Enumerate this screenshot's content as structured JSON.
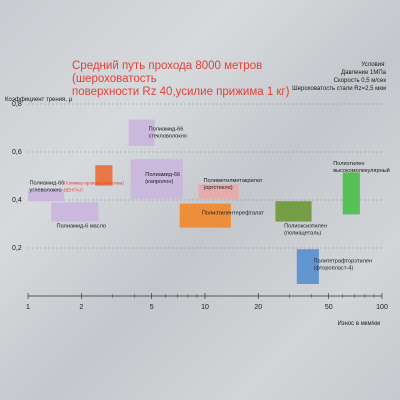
{
  "chart_data": {
    "type": "box",
    "title": "Средний путь прохода 8000 метров (шероховатость поверхности Rz 40,усилие прижима 1 кг)",
    "title_lines": [
      "Средний путь прохода 8000 метров (шероховатость",
      "поверхности Rz 40,усилие прижима 1 кг)"
    ],
    "conditions": [
      "Условия:",
      "Давление 1МПа",
      "Скорость 0,5 м/сек",
      "Шероховатость стали Rz=2,5 мкм"
    ],
    "ylabel": "Коэффициент трения, μ",
    "xlabel": "Износ в мкм/км",
    "x_scale": "log",
    "xlim": [
      1,
      100
    ],
    "ylim": [
      0,
      0.8
    ],
    "x_ticks": [
      1,
      2,
      5,
      10,
      20,
      50,
      100
    ],
    "x_tick_labels": [
      "1",
      "2",
      "5",
      "10",
      "20",
      "50",
      "100"
    ],
    "y_ticks": [
      0.2,
      0.4,
      0.6,
      0.8
    ],
    "y_tick_labels": [
      "0,2",
      "0,4",
      "0,6",
      "0,8"
    ],
    "grid": "horizontal dashed",
    "materials": [
      {
        "name": "Полиамид-66 стекловолокно",
        "x": [
          3.7,
          5.2
        ],
        "y": [
          0.625,
          0.735
        ],
        "color": "#c9b6dc",
        "label_lines": [
          "Полиамид-66",
          "стекловолокно"
        ],
        "label_pos": [
          4.8,
          0.69
        ]
      },
      {
        "name": "Полиамид-66 углеволокно",
        "x": [
          1.0,
          1.6
        ],
        "y": [
          0.395,
          0.445
        ],
        "color": "#c9b6dc",
        "label_lines": [
          "Полиамид-66",
          "углеволокно"
        ],
        "label_pos": [
          1.02,
          0.465
        ]
      },
      {
        "name": "Полиамид-6 масло",
        "x": [
          1.35,
          2.5
        ],
        "y": [
          0.31,
          0.39
        ],
        "color": "#c9b6dc",
        "label_lines": [
          "Полиамид-6 масло"
        ],
        "label_pos": [
          1.45,
          0.285
        ]
      },
      {
        "name": "Полимер-произв. ВЕНПАЛ",
        "x": [
          2.4,
          3.0
        ],
        "y": [
          0.46,
          0.545
        ],
        "color": "#e8703a",
        "label_lines": [
          "Полимер-произв.(синтетика)",
          "ВЕНПАЛ"
        ],
        "label_pos": [
          1.6,
          0.465
        ]
      },
      {
        "name": "Полиамид-66 (капролон)",
        "x": [
          3.8,
          7.5
        ],
        "y": [
          0.405,
          0.57
        ],
        "color": "#c9b6dc",
        "label_lines": [
          "Полиамид-66",
          "(капролон)"
        ],
        "label_pos": [
          4.6,
          0.5
        ]
      },
      {
        "name": "Полиметилметакрилат (оргстекло)",
        "x": [
          9.2,
          15.5
        ],
        "y": [
          0.405,
          0.465
        ],
        "color": "#e8a8a8",
        "label_lines": [
          "Полиметилметакрилат",
          "(оргстекло)"
        ],
        "label_pos": [
          9.8,
          0.475
        ]
      },
      {
        "name": "Полиэтилентерефталат",
        "x": [
          7.2,
          14.0
        ],
        "y": [
          0.285,
          0.385
        ],
        "color": "#f08a2e",
        "label_lines": [
          "Полиэтилентерефталат"
        ],
        "label_pos": [
          9.6,
          0.34
        ]
      },
      {
        "name": "Полиоксиэтилен (полиацеталь)",
        "x": [
          25.0,
          40.0
        ],
        "y": [
          0.31,
          0.395
        ],
        "color": "#6e9a3a",
        "label_lines": [
          "Полиоксиэтилен",
          "(полиацеталь)"
        ],
        "label_pos": [
          28.0,
          0.285
        ]
      },
      {
        "name": "Полиэтилен высокомолекулярный",
        "x": [
          60.0,
          75.0
        ],
        "y": [
          0.34,
          0.515
        ],
        "color": "#4cbf4c",
        "label_lines": [
          "Полиэтилен",
          "высокомолекулярный"
        ],
        "label_pos": [
          53.0,
          0.545
        ]
      },
      {
        "name": "Политетрафторэтилен (фторопласт-4)",
        "x": [
          33.0,
          44.0
        ],
        "y": [
          0.05,
          0.195
        ],
        "color": "#5a8fd0",
        "label_lines": [
          "Политетрафторэтилен",
          "(фторопласт-4)"
        ],
        "label_pos": [
          41.0,
          0.14
        ]
      }
    ]
  }
}
